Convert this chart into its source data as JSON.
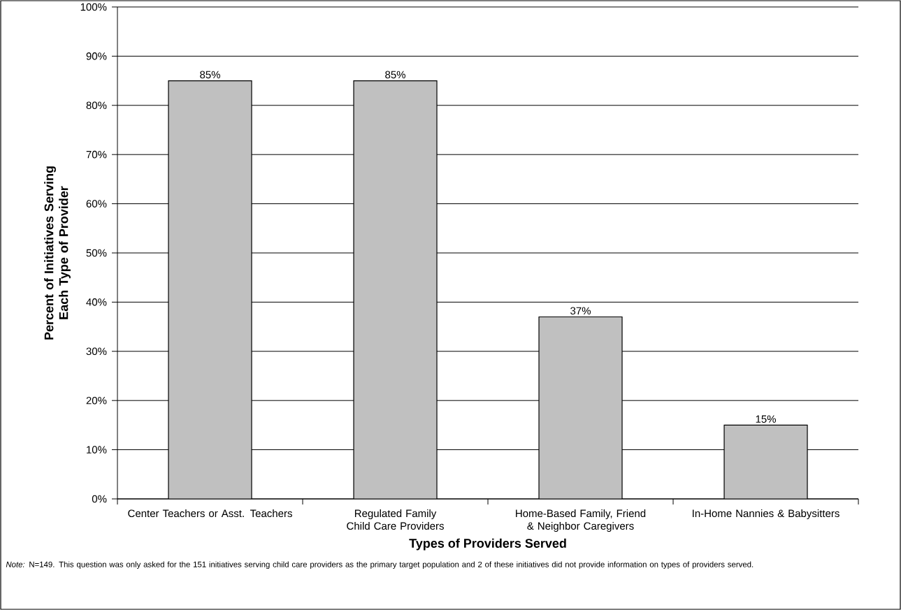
{
  "chart_data": {
    "type": "bar",
    "xlabel": "Types of Providers Served",
    "ylabel": "Percent of Initiatives Serving Each Type of Provider",
    "categories": [
      "Center Teachers or Asst. Teachers",
      "Regulated Family Child Care Providers",
      "Home-Based Family, Friend & Neighbor Caregivers",
      "In-Home Nannies & Babysitters"
    ],
    "values": [
      85,
      85,
      37,
      15
    ],
    "value_labels": [
      "85%",
      "85%",
      "37%",
      "15%"
    ],
    "color": "#c0c0c0",
    "ylim": [
      0,
      100
    ],
    "yticks": [
      {
        "value": 0,
        "label": "0%"
      },
      {
        "value": 10,
        "label": "10%"
      },
      {
        "value": 20,
        "label": "20%"
      },
      {
        "value": 30,
        "label": "30%"
      },
      {
        "value": 40,
        "label": "40%"
      },
      {
        "value": 50,
        "label": "50%"
      },
      {
        "value": 60,
        "label": "60%"
      },
      {
        "value": 70,
        "label": "70%"
      },
      {
        "value": 80,
        "label": "80%"
      },
      {
        "value": 90,
        "label": "90%"
      },
      {
        "value": 100,
        "label": "100%"
      }
    ],
    "grid": "y",
    "annotations": [
      "*Note:* N=149. This question was only asked for the 151 initiatives serving child care providers as the primary target population and 2 of these initiatives did not provide information on types of providers served."
    ]
  }
}
